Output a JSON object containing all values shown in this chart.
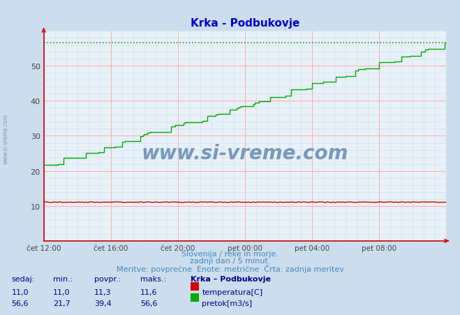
{
  "title": "Krka - Podbukovje",
  "bg_color": "#ccdded",
  "plot_bg_color": "#e8f0f8",
  "title_color": "#0000cc",
  "grid_color_major": "#ffaaaa",
  "grid_color_minor": "#ccddee",
  "x_min": 0,
  "x_max": 288,
  "y_min": 0,
  "y_max": 60,
  "y_ticks": [
    10,
    20,
    30,
    40,
    50
  ],
  "x_tick_labels": [
    "čet 12:00",
    "čet 16:00",
    "čet 20:00",
    "pet 00:00",
    "pet 04:00",
    "pet 08:00"
  ],
  "x_tick_positions": [
    0,
    48,
    96,
    144,
    192,
    240
  ],
  "temp_color": "#cc0000",
  "flow_color": "#00aa00",
  "dashed_line_color": "#00aa00",
  "dashed_line_value": 56.6,
  "watermark_text": "www.si-vreme.com",
  "watermark_color": "#7799bb",
  "subtitle_line1": "Slovenija / reke in morje.",
  "subtitle_line2": "zadnji dan / 5 minut.",
  "subtitle_line3": "Meritve: povprečne  Enote: metrične  Črta: zadnja meritev",
  "subtitle_color": "#4488bb",
  "table_headers": [
    "sedaj:",
    "min.:",
    "povpr.:",
    "maks.:",
    "Krka – Podbukovje"
  ],
  "table_color": "#000088",
  "temp_row": [
    "11,0",
    "11,0",
    "11,3",
    "11,6"
  ],
  "flow_row": [
    "56,6",
    "21,7",
    "39,4",
    "56,6"
  ],
  "temp_label": "temperatura[C]",
  "flow_label": "pretok[m3/s]",
  "axis_label_color": "#444444",
  "spine_color": "#cc0000"
}
